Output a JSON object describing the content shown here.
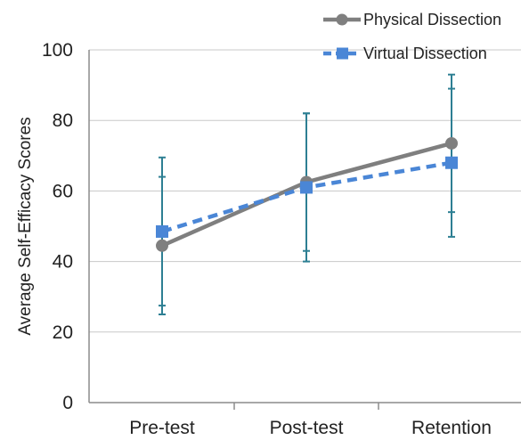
{
  "chart_data": {
    "type": "line",
    "title": "",
    "xlabel": "",
    "ylabel": "Average Self-Efficacy Scores",
    "categories": [
      "Pre-test",
      "Post-test",
      "Retention"
    ],
    "ylim": [
      0,
      100
    ],
    "yticks": [
      0,
      20,
      40,
      60,
      80,
      100
    ],
    "grid": "horizontal",
    "legend_position": "top-right",
    "series": [
      {
        "name": "Physical Dissection",
        "values": [
          44.5,
          62.5,
          73.5
        ],
        "error_low": [
          25,
          43,
          54
        ],
        "error_high": [
          64,
          82,
          93
        ],
        "color": "#7f7f7f",
        "marker": "circle",
        "line_style": "solid"
      },
      {
        "name": "Virtual Dissection",
        "values": [
          48.5,
          61,
          68
        ],
        "error_low": [
          27.5,
          40,
          47
        ],
        "error_high": [
          69.5,
          82,
          89
        ],
        "color": "#4a86d6",
        "marker": "square",
        "line_style": "dashed"
      }
    ],
    "error_bar_color": "#2d7f93"
  }
}
